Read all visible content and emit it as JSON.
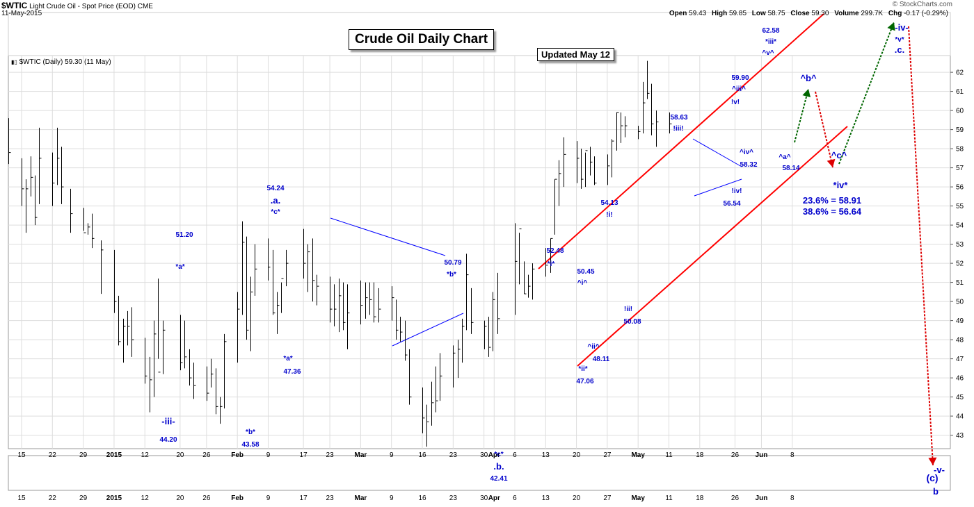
{
  "header": {
    "symbol": "$WTIC",
    "description": "Light Crude Oil - Spot Price (EOD)",
    "exchange": "CME",
    "date": "11-May-2015",
    "brand": "© StockCharts.com",
    "stats": [
      {
        "label": "Open",
        "value": "59.43"
      },
      {
        "label": "High",
        "value": "59.85"
      },
      {
        "label": "Low",
        "value": "58.75"
      },
      {
        "label": "Close",
        "value": "59.30"
      },
      {
        "label": "Volume",
        "value": "299.7K"
      },
      {
        "label": "Chg",
        "value": "-0.17 (-0.29%)"
      }
    ],
    "legend": "$WTIC (Daily) 59.30 (11 May)"
  },
  "title_box": "Crude Oil Daily Chart",
  "updated_box": "Updated May 12",
  "colors": {
    "price": "#000000",
    "wave_label": "#0000cc",
    "channel": "#ff0000",
    "trend": "#0000ff",
    "projection_up": "#006600",
    "projection_down": "#dd0000",
    "grid": "#dddddd"
  },
  "chart_data": {
    "type": "ohlc-bar",
    "y_ticks": [
      43,
      44,
      45,
      46,
      47,
      48,
      49,
      50,
      51,
      52,
      53,
      54,
      55,
      56,
      57,
      58,
      59,
      60,
      61,
      62
    ],
    "x_ticks": [
      "15",
      "22",
      "29",
      "2015",
      "12",
      "20",
      "26",
      "Feb",
      "9",
      "17",
      "23",
      "Mar",
      "9",
      "16",
      "23",
      "30",
      "Apr",
      "6",
      "13",
      "20",
      "27",
      "May",
      "11",
      "18",
      "26",
      "Jun",
      "8"
    ],
    "bars": [
      {
        "date": "2014-12-12",
        "h": 59.6,
        "l": 57.2,
        "c": 57.8
      },
      {
        "date": "2014-12-15",
        "h": 57.5,
        "l": 55.0,
        "c": 55.9
      },
      {
        "date": "2014-12-16",
        "h": 56.4,
        "l": 53.6,
        "c": 55.9
      },
      {
        "date": "2014-12-17",
        "h": 57.6,
        "l": 55.5,
        "c": 56.5
      },
      {
        "date": "2014-12-18",
        "h": 56.6,
        "l": 54.0,
        "c": 54.4
      },
      {
        "date": "2014-12-19",
        "h": 59.1,
        "l": 55.1,
        "c": 57.5
      },
      {
        "date": "2014-12-22",
        "h": 57.8,
        "l": 55.0,
        "c": 56.2
      },
      {
        "date": "2014-12-23",
        "h": 59.1,
        "l": 56.1,
        "c": 57.5
      },
      {
        "date": "2014-12-24",
        "h": 58.1,
        "l": 55.1,
        "c": 56.0
      },
      {
        "date": "2014-12-26",
        "h": 55.9,
        "l": 53.6,
        "c": 54.6
      },
      {
        "date": "2014-12-29",
        "h": 54.9,
        "l": 53.7,
        "c": 53.6
      },
      {
        "date": "2014-12-30",
        "h": 54.1,
        "l": 53.5,
        "c": 53.9
      },
      {
        "date": "2014-12-31",
        "h": 54.6,
        "l": 52.8,
        "c": 53.3
      },
      {
        "date": "2015-01-02",
        "h": 53.2,
        "l": 50.4,
        "c": 52.7
      },
      {
        "date": "2015-01-05",
        "h": 52.7,
        "l": 49.4,
        "c": 50.0
      },
      {
        "date": "2015-01-06",
        "h": 50.3,
        "l": 47.7,
        "c": 47.9
      },
      {
        "date": "2015-01-07",
        "h": 49.1,
        "l": 46.8,
        "c": 48.7
      },
      {
        "date": "2015-01-08",
        "h": 49.5,
        "l": 47.7,
        "c": 48.7
      },
      {
        "date": "2015-01-09",
        "h": 49.7,
        "l": 47.1,
        "c": 48.0
      },
      {
        "date": "2015-01-12",
        "h": 48.1,
        "l": 45.7,
        "c": 46.1
      },
      {
        "date": "2015-01-13",
        "h": 47.1,
        "l": 44.2,
        "c": 45.9
      },
      {
        "date": "2015-01-14",
        "h": 49.0,
        "l": 45.0,
        "c": 48.3
      },
      {
        "date": "2015-01-15",
        "h": 51.2,
        "l": 47.0,
        "c": 46.3
      },
      {
        "date": "2015-01-16",
        "h": 49.0,
        "l": 46.2,
        "c": 48.5
      },
      {
        "date": "2015-01-20",
        "h": 49.3,
        "l": 46.4,
        "c": 46.8
      },
      {
        "date": "2015-01-21",
        "h": 49.0,
        "l": 46.5,
        "c": 47.1
      },
      {
        "date": "2015-01-22",
        "h": 47.5,
        "l": 45.6,
        "c": 46.0
      },
      {
        "date": "2015-01-23",
        "h": 46.8,
        "l": 44.9,
        "c": 45.6
      },
      {
        "date": "2015-01-26",
        "h": 46.6,
        "l": 44.8,
        "c": 45.2
      },
      {
        "date": "2015-01-27",
        "h": 47.0,
        "l": 45.5,
        "c": 46.2
      },
      {
        "date": "2015-01-28",
        "h": 46.5,
        "l": 44.1,
        "c": 44.5
      },
      {
        "date": "2015-01-29",
        "h": 45.0,
        "l": 43.6,
        "c": 44.5
      },
      {
        "date": "2015-01-30",
        "h": 48.3,
        "l": 44.4,
        "c": 47.9
      },
      {
        "date": "2015-02-02",
        "h": 50.5,
        "l": 46.8,
        "c": 49.6
      },
      {
        "date": "2015-02-03",
        "h": 54.2,
        "l": 49.3,
        "c": 53.1
      },
      {
        "date": "2015-02-04",
        "h": 53.4,
        "l": 48.0,
        "c": 48.5
      },
      {
        "date": "2015-02-05",
        "h": 51.3,
        "l": 47.4,
        "c": 50.5
      },
      {
        "date": "2015-02-06",
        "h": 53.0,
        "l": 50.3,
        "c": 51.7
      },
      {
        "date": "2015-02-09",
        "h": 53.3,
        "l": 51.1,
        "c": 51.8
      },
      {
        "date": "2015-02-10",
        "h": 52.7,
        "l": 49.3,
        "c": 49.4
      },
      {
        "date": "2015-02-11",
        "h": 50.5,
        "l": 48.3,
        "c": 49.8
      },
      {
        "date": "2015-02-12",
        "h": 51.0,
        "l": 49.4,
        "c": 51.2
      },
      {
        "date": "2015-02-13",
        "h": 52.7,
        "l": 50.8,
        "c": 52.0
      },
      {
        "date": "2015-02-17",
        "h": 53.8,
        "l": 51.2,
        "c": 52.0
      },
      {
        "date": "2015-02-18",
        "h": 53.0,
        "l": 50.5,
        "c": 52.6
      },
      {
        "date": "2015-02-19",
        "h": 53.3,
        "l": 50.0,
        "c": 51.1
      },
      {
        "date": "2015-02-20",
        "h": 51.4,
        "l": 49.8,
        "c": 50.8
      },
      {
        "date": "2015-02-23",
        "h": 51.3,
        "l": 48.9,
        "c": 49.6
      },
      {
        "date": "2015-02-24",
        "h": 50.9,
        "l": 48.7,
        "c": 49.6
      },
      {
        "date": "2015-02-25",
        "h": 51.2,
        "l": 48.4,
        "c": 50.3
      },
      {
        "date": "2015-02-26",
        "h": 51.0,
        "l": 48.5,
        "c": 48.9
      },
      {
        "date": "2015-02-27",
        "h": 50.9,
        "l": 47.5,
        "c": 49.4
      },
      {
        "date": "2015-03-02",
        "h": 51.1,
        "l": 48.8,
        "c": 49.8
      },
      {
        "date": "2015-03-03",
        "h": 51.0,
        "l": 49.1,
        "c": 50.2
      },
      {
        "date": "2015-03-04",
        "h": 51.0,
        "l": 49.3,
        "c": 50.1
      },
      {
        "date": "2015-03-05",
        "h": 51.0,
        "l": 48.9,
        "c": 49.2
      },
      {
        "date": "2015-03-06",
        "h": 50.7,
        "l": 48.9,
        "c": 49.6
      },
      {
        "date": "2015-03-09",
        "h": 50.8,
        "l": 49.0,
        "c": 50.2
      },
      {
        "date": "2015-03-10",
        "h": 50.1,
        "l": 48.0,
        "c": 48.5
      },
      {
        "date": "2015-03-11",
        "h": 49.2,
        "l": 47.9,
        "c": 48.4
      },
      {
        "date": "2015-03-12",
        "h": 49.0,
        "l": 46.9,
        "c": 47.2
      },
      {
        "date": "2015-03-13",
        "h": 47.5,
        "l": 44.6,
        "c": 45.0
      },
      {
        "date": "2015-03-16",
        "h": 45.5,
        "l": 43.1,
        "c": 43.9
      },
      {
        "date": "2015-03-17",
        "h": 44.6,
        "l": 42.4,
        "c": 43.7
      },
      {
        "date": "2015-03-18",
        "h": 45.8,
        "l": 43.5,
        "c": 44.7
      },
      {
        "date": "2015-03-19",
        "h": 46.6,
        "l": 44.2,
        "c": 44.8
      },
      {
        "date": "2015-03-20",
        "h": 47.3,
        "l": 44.8,
        "c": 46.1
      },
      {
        "date": "2015-03-23",
        "h": 47.7,
        "l": 45.5,
        "c": 47.3
      },
      {
        "date": "2015-03-24",
        "h": 48.0,
        "l": 46.0,
        "c": 47.5
      },
      {
        "date": "2015-03-25",
        "h": 49.1,
        "l": 46.8,
        "c": 48.7
      },
      {
        "date": "2015-03-26",
        "h": 52.5,
        "l": 48.5,
        "c": 51.4
      },
      {
        "date": "2015-03-27",
        "h": 50.7,
        "l": 48.3,
        "c": 48.9
      },
      {
        "date": "2015-03-30",
        "h": 49.0,
        "l": 47.5,
        "c": 48.7
      },
      {
        "date": "2015-03-31",
        "h": 49.2,
        "l": 47.1,
        "c": 47.6
      },
      {
        "date": "2015-04-01",
        "h": 50.5,
        "l": 47.4,
        "c": 50.1
      },
      {
        "date": "2015-04-02",
        "h": 51.5,
        "l": 48.3,
        "c": 49.1
      },
      {
        "date": "2015-04-06",
        "h": 54.1,
        "l": 49.3,
        "c": 52.1
      },
      {
        "date": "2015-04-07",
        "h": 53.6,
        "l": 50.9,
        "c": 53.8
      },
      {
        "date": "2015-04-08",
        "h": 52.1,
        "l": 50.4,
        "c": 50.4
      },
      {
        "date": "2015-04-09",
        "h": 51.4,
        "l": 50.2,
        "c": 50.8
      },
      {
        "date": "2015-04-10",
        "h": 52.0,
        "l": 50.1,
        "c": 51.7
      },
      {
        "date": "2015-04-13",
        "h": 52.8,
        "l": 51.3,
        "c": 51.9
      },
      {
        "date": "2015-04-14",
        "h": 53.3,
        "l": 51.5,
        "c": 53.3
      },
      {
        "date": "2015-04-15",
        "h": 56.4,
        "l": 53.5,
        "c": 56.4
      },
      {
        "date": "2015-04-16",
        "h": 57.4,
        "l": 55.0,
        "c": 56.7
      },
      {
        "date": "2015-04-17",
        "h": 58.6,
        "l": 56.0,
        "c": 57.7
      },
      {
        "date": "2015-04-20",
        "h": 58.4,
        "l": 56.2,
        "c": 57.5
      },
      {
        "date": "2015-04-21",
        "h": 58.0,
        "l": 55.9,
        "c": 56.4
      },
      {
        "date": "2015-04-22",
        "h": 57.8,
        "l": 56.0,
        "c": 57.9
      },
      {
        "date": "2015-04-23",
        "h": 58.1,
        "l": 56.6,
        "c": 57.3
      },
      {
        "date": "2015-04-24",
        "h": 57.6,
        "l": 56.1,
        "c": 56.2
      },
      {
        "date": "2015-04-27",
        "h": 57.7,
        "l": 56.1,
        "c": 57.1
      },
      {
        "date": "2015-04-28",
        "h": 58.5,
        "l": 56.5,
        "c": 58.4
      },
      {
        "date": "2015-04-29",
        "h": 59.9,
        "l": 57.9,
        "c": 59.9
      },
      {
        "date": "2015-04-30",
        "h": 59.9,
        "l": 58.3,
        "c": 59.2
      },
      {
        "date": "2015-05-01",
        "h": 59.7,
        "l": 58.6,
        "c": 59.2
      },
      {
        "date": "2015-05-04",
        "h": 59.2,
        "l": 58.5,
        "c": 58.9
      },
      {
        "date": "2015-05-05",
        "h": 61.5,
        "l": 58.8,
        "c": 60.4
      },
      {
        "date": "2015-05-06",
        "h": 62.6,
        "l": 60.6,
        "c": 60.9
      },
      {
        "date": "2015-05-07",
        "h": 61.4,
        "l": 58.7,
        "c": 59.3
      },
      {
        "date": "2015-05-08",
        "h": 60.0,
        "l": 58.1,
        "c": 59.4
      },
      {
        "date": "2015-05-11",
        "h": 59.9,
        "l": 58.8,
        "c": 59.3
      }
    ],
    "wave_labels": [
      "51.20",
      "*a*",
      "-iii-",
      "44.20",
      "*b*",
      "43.58",
      "54.24",
      ".a.",
      "*c*",
      "*a*",
      "47.36",
      "50.79",
      "*b*",
      "*c*",
      ".b.",
      "42.41",
      "52.48",
      "*i*",
      "*ii*",
      "47.06",
      "50.45",
      "^i^",
      "^ii^",
      "48.11",
      "54.13",
      "!i!",
      "!ii!",
      "50.08",
      "58.63",
      "!iii!",
      "58.32",
      "^iv^",
      "!iv!",
      "56.54",
      "59.90",
      "^iii^",
      "!v!",
      "62.58",
      "*iii*",
      "^v^",
      "^a^",
      "58.14",
      "^b^",
      "^c^",
      "*iv*",
      "23.6% = 58.91",
      "38.6% = 56.64",
      "-iv-",
      "*v*",
      ".c.",
      "-v-",
      "(c)",
      "b"
    ]
  }
}
